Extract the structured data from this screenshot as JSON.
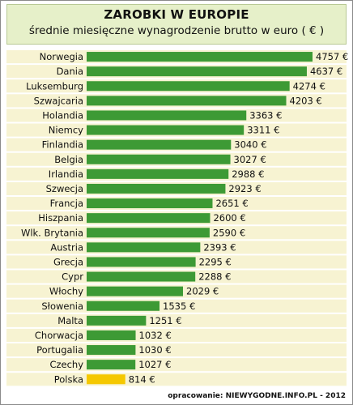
{
  "header": {
    "title": "ZAROBKI W EUROPIE",
    "subtitle": "średnie miesięczne wynagrodzenie brutto w euro ( € )"
  },
  "footer": {
    "source": "opracowanie: NIEWYGODNE.INFO.PL - 2012"
  },
  "chart_data": {
    "type": "bar",
    "orientation": "horizontal",
    "categories": [
      "Norwegia",
      "Dania",
      "Luksemburg",
      "Szwajcaria",
      "Holandia",
      "Niemcy",
      "Finlandia",
      "Belgia",
      "Irlandia",
      "Szwecja",
      "Francja",
      "Hiszpania",
      "Wlk. Brytania",
      "Austria",
      "Grecja",
      "Cypr",
      "Włochy",
      "Słowenia",
      "Malta",
      "Chorwacja",
      "Portugalia",
      "Czechy",
      "Polska"
    ],
    "values": [
      4757,
      4637,
      4274,
      4203,
      3363,
      3311,
      3040,
      3027,
      2988,
      2923,
      2651,
      2600,
      2590,
      2393,
      2295,
      2288,
      2029,
      1535,
      1251,
      1032,
      1030,
      1027,
      814
    ],
    "value_labels": [
      "4757 €",
      "4637 €",
      "4274 €",
      "4203 €",
      "3363 €",
      "3311 €",
      "3040 €",
      "3027 €",
      "2988 €",
      "2923 €",
      "2651 €",
      "2600 €",
      "2590 €",
      "2393 €",
      "2295 €",
      "2288 €",
      "2029 €",
      "1535 €",
      "1251 €",
      "1032 €",
      "1030 €",
      "1027 €",
      "814 €"
    ],
    "highlight_category": "Polska",
    "xlim": [
      0,
      4757
    ],
    "grid": false,
    "legend": "none",
    "colors": {
      "bar": "#3d9a35",
      "highlight_bar": "#f5c800",
      "row_band": "#f7f3d2",
      "header_band": "#e6f0c9"
    }
  }
}
